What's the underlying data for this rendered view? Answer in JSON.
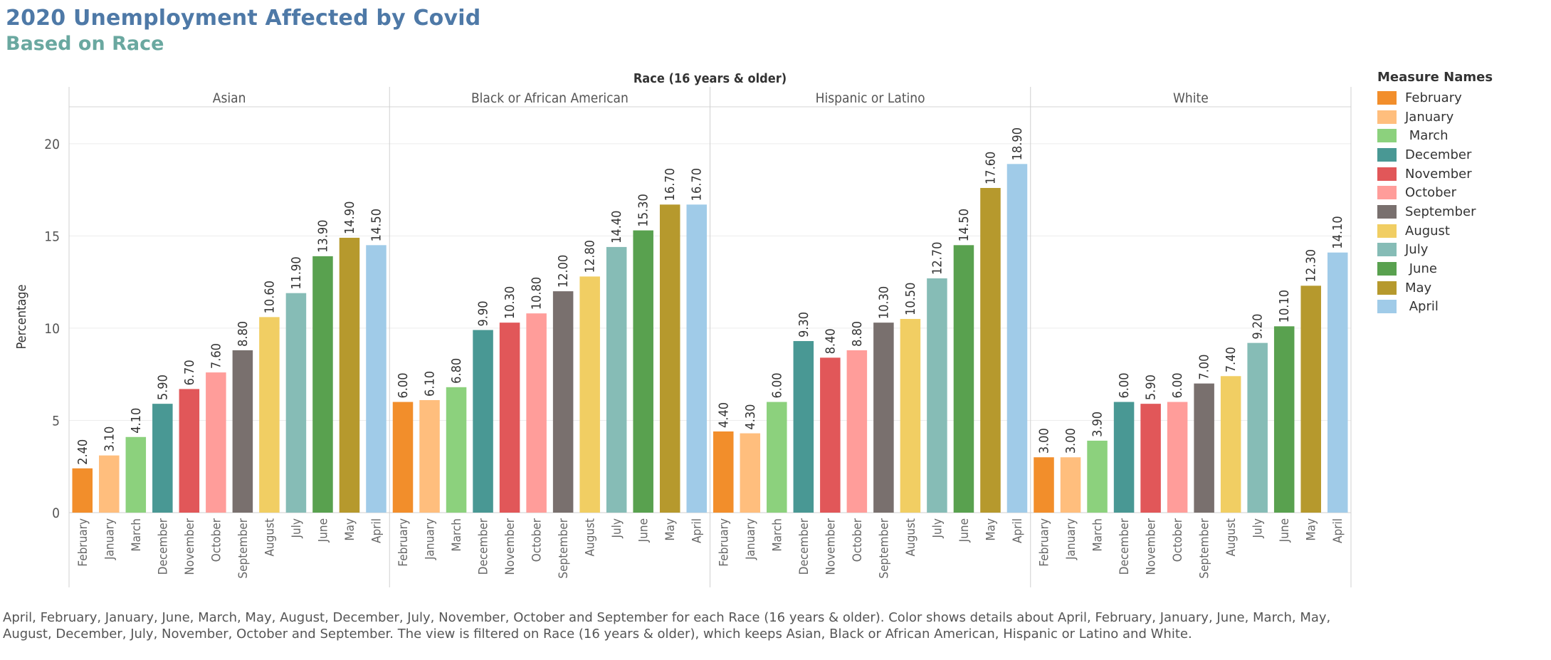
{
  "header": {
    "title": "2020 Unemployment Affected by Covid",
    "subtitle": "Based on Race"
  },
  "footnote": " April,  February, January,  June,  March, May, August, December, July, November, October and September for each Race (16 years & older).  Color shows details about  April,  February, January,  June,  March, May, August, December, July, November, October and September. The view is filtered on Race (16 years & older), which keeps Asian, Black or African American, Hispanic or Latino and White.",
  "chart_data": {
    "type": "bar",
    "column_header": "Race (16 years & older)",
    "ylabel": "Percentage",
    "ylim": [
      0,
      22
    ],
    "yticks": [
      0,
      5,
      10,
      15,
      20
    ],
    "grid": true,
    "categories": [
      "February",
      "January",
      "March",
      "December",
      "November",
      "October",
      "September",
      "August",
      "July",
      "June",
      "May",
      "April"
    ],
    "colors": [
      "#f28e2b",
      "#ffbe7d",
      "#8cd17d",
      "#499894",
      "#e15759",
      "#ff9d9a",
      "#79706e",
      "#f1ce63",
      "#86bcb6",
      "#59a14f",
      "#b6992d",
      "#a0cbe8"
    ],
    "panels": [
      {
        "name": "Asian",
        "values": [
          2.4,
          3.1,
          4.1,
          5.9,
          6.7,
          7.6,
          8.8,
          10.6,
          11.9,
          13.9,
          14.9,
          14.5
        ],
        "labels": [
          "2.40",
          "3.10",
          "4.10",
          "5.90",
          "6.70",
          "7.60",
          "8.80",
          "10.60",
          "11.90",
          "13.90",
          "14.90",
          "14.50"
        ]
      },
      {
        "name": "Black or African American",
        "values": [
          6.0,
          6.1,
          6.8,
          9.9,
          10.3,
          10.8,
          12.0,
          12.8,
          14.4,
          15.3,
          16.7,
          16.7
        ],
        "labels": [
          "6.00",
          "6.10",
          "6.80",
          "9.90",
          "10.30",
          "10.80",
          "12.00",
          "12.80",
          "14.40",
          "15.30",
          "16.70",
          "16.70"
        ]
      },
      {
        "name": "Hispanic or Latino",
        "values": [
          4.4,
          4.3,
          6.0,
          9.3,
          8.4,
          8.8,
          10.3,
          10.5,
          12.7,
          14.5,
          17.6,
          18.9
        ],
        "labels": [
          "4.40",
          "4.30",
          "6.00",
          "9.30",
          "8.40",
          "8.80",
          "10.30",
          "10.50",
          "12.70",
          "14.50",
          "17.60",
          "18.90"
        ]
      },
      {
        "name": "White",
        "values": [
          3.0,
          3.0,
          3.9,
          6.0,
          5.9,
          6.0,
          7.0,
          7.4,
          9.2,
          10.1,
          12.3,
          14.1
        ],
        "labels": [
          "3.00",
          "3.00",
          "3.90",
          "6.00",
          "5.90",
          "6.00",
          "7.00",
          "7.40",
          "9.20",
          "10.10",
          "12.30",
          "14.10"
        ]
      }
    ],
    "legend": {
      "title": "Measure Names",
      "position": "right",
      "items": [
        "February",
        "January",
        " March",
        "December",
        "November",
        "October",
        "September",
        "August",
        "July",
        " June",
        "May",
        " April"
      ]
    }
  }
}
